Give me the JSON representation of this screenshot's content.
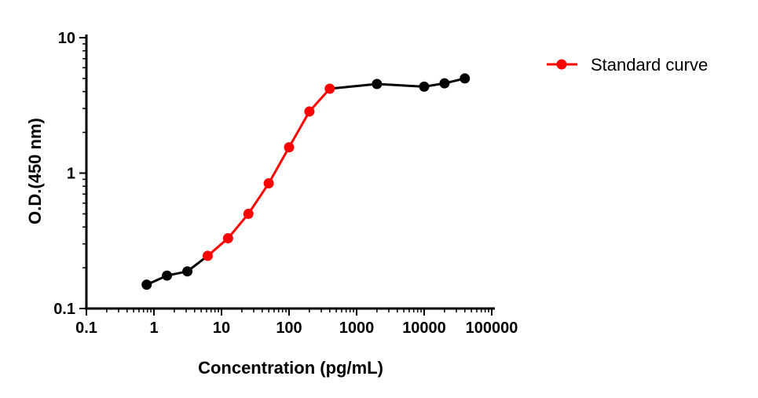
{
  "chart_data": {
    "type": "line",
    "xlabel": "Concentration (pg/mL)",
    "ylabel": "O.D.(450 nm)",
    "x_scale": "log",
    "y_scale": "log",
    "xlim": [
      0.1,
      100000
    ],
    "ylim": [
      0.1,
      10
    ],
    "x_ticks": [
      "0.1",
      "1",
      "10",
      "100",
      "1000",
      "10000",
      "100000"
    ],
    "y_ticks": [
      "0.1",
      "1",
      "10"
    ],
    "grid": false,
    "legend_position": "top-right",
    "series": [
      {
        "name": "Standard curve",
        "color": "#ff0000",
        "x": [
          6.25,
          12.5,
          25,
          50,
          100,
          200,
          400
        ],
        "y": [
          0.245,
          0.33,
          0.5,
          0.84,
          1.55,
          2.85,
          4.2
        ]
      }
    ],
    "extra_points": {
      "color": "#000000",
      "low": {
        "x": [
          0.78,
          1.56,
          3.125,
          6.25
        ],
        "y": [
          0.15,
          0.175,
          0.188,
          0.245
        ]
      },
      "high": {
        "x": [
          400,
          2000,
          10000,
          20000,
          40000
        ],
        "y": [
          4.2,
          4.55,
          4.35,
          4.6,
          5.0
        ]
      }
    }
  }
}
